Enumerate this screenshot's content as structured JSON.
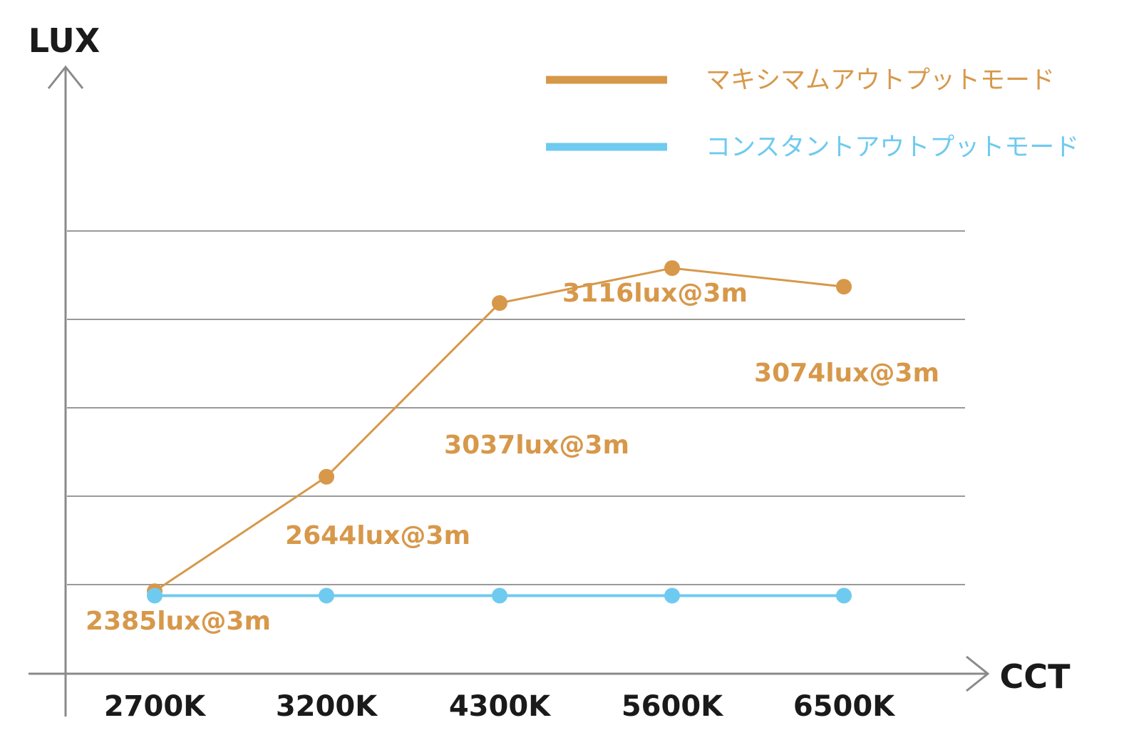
{
  "chart_data": {
    "type": "line",
    "xlabel": "CCT",
    "ylabel": "LUX",
    "categories": [
      "2700K",
      "3200K",
      "4300K",
      "5600K",
      "6500K"
    ],
    "series": [
      {
        "name": "マキシマムアウトプットモード",
        "color": "#d7984a",
        "values": [
          2385,
          2644,
          3037,
          3116,
          3074
        ],
        "labels": [
          "2385lux@3m",
          "2644lux@3m",
          "3037lux@3m",
          "3116lux@3m",
          "3074lux@3m"
        ]
      },
      {
        "name": "コンスタントアウトプットモード",
        "color": "#6fcaf0",
        "values": [
          2375,
          2375,
          2375,
          2375,
          2375
        ]
      }
    ],
    "y_gridlines": [
      2400,
      2600,
      2800,
      3000,
      3200
    ],
    "grid": true,
    "legend_position": "top-right"
  },
  "colors": {
    "axis": "#8a8a8a",
    "grid": "#9a9a9a",
    "text": "#1a1a1a"
  }
}
